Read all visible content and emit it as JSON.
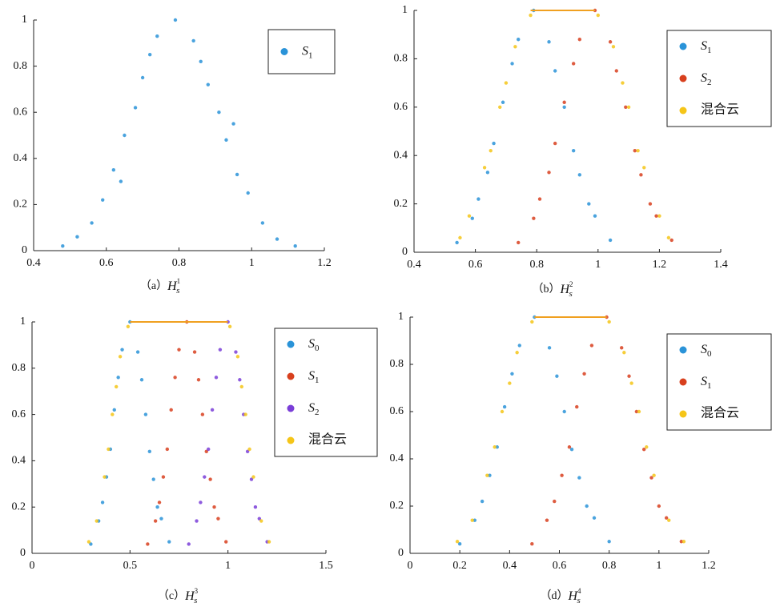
{
  "chart_data": [
    {
      "type": "scatter",
      "caption": {
        "label": "（a）",
        "symbol": "H",
        "sub": "s",
        "sup": "1"
      },
      "xlim": [
        0.4,
        1.2
      ],
      "xticks": [
        0.4,
        0.6,
        0.8,
        1,
        1.2
      ],
      "ylim": [
        0,
        1
      ],
      "yticks": [
        0,
        0.2,
        0.4,
        0.6,
        0.8,
        1
      ],
      "series": [
        {
          "name": "S1",
          "color": "#2a93d8",
          "x": [
            0.79,
            0.74,
            0.84,
            0.7,
            0.88,
            0.68,
            0.91,
            0.65,
            0.93,
            0.62,
            0.96,
            0.59,
            0.99,
            0.56,
            1.03,
            0.52,
            1.07,
            0.72,
            0.86,
            0.64,
            0.95,
            0.48,
            1.12
          ],
          "values": [
            1,
            0.93,
            0.91,
            0.75,
            0.72,
            0.62,
            0.6,
            0.5,
            0.48,
            0.35,
            0.33,
            0.22,
            0.25,
            0.12,
            0.12,
            0.06,
            0.05,
            0.85,
            0.82,
            0.3,
            0.55,
            0.02,
            0.02
          ]
        }
      ]
    },
    {
      "type": "scatter",
      "caption": {
        "label": "（b）",
        "symbol": "H",
        "sub": "s",
        "sup": "2"
      },
      "xlim": [
        0.4,
        1.4
      ],
      "xticks": [
        0.4,
        0.6,
        0.8,
        1,
        1.2,
        1.4
      ],
      "ylim": [
        0,
        1
      ],
      "yticks": [
        0,
        0.2,
        0.4,
        0.6,
        0.8,
        1
      ],
      "top_line": {
        "x": [
          0.78,
          0.99
        ],
        "y": [
          1,
          1
        ],
        "color": "#f0a020"
      },
      "series": [
        {
          "name": "S1",
          "color": "#2a93d8",
          "x": [
            0.79,
            0.74,
            0.84,
            0.69,
            0.89,
            0.64,
            0.94,
            0.59,
            0.99,
            0.54,
            1.04,
            0.72,
            0.86,
            0.66,
            0.92,
            0.61,
            0.97
          ],
          "values": [
            1,
            0.88,
            0.87,
            0.62,
            0.6,
            0.33,
            0.32,
            0.14,
            0.15,
            0.04,
            0.05,
            0.78,
            0.75,
            0.45,
            0.42,
            0.22,
            0.2
          ]
        },
        {
          "name": "S2",
          "color": "#d8401e",
          "x": [
            0.99,
            0.94,
            1.04,
            0.89,
            1.09,
            0.84,
            1.14,
            0.79,
            1.19,
            0.74,
            1.24,
            0.92,
            1.06,
            0.86,
            1.12,
            0.81,
            1.17
          ],
          "values": [
            1,
            0.88,
            0.87,
            0.62,
            0.6,
            0.33,
            0.32,
            0.14,
            0.15,
            0.04,
            0.05,
            0.78,
            0.75,
            0.45,
            0.42,
            0.22,
            0.2
          ]
        },
        {
          "name": "混合云",
          "color": "#f5c518",
          "x": [
            0.78,
            0.73,
            0.68,
            0.63,
            0.58,
            0.55,
            0.7,
            0.65,
            1.0,
            1.05,
            1.1,
            1.15,
            1.2,
            1.23,
            1.08,
            1.13
          ],
          "values": [
            0.98,
            0.85,
            0.6,
            0.35,
            0.15,
            0.06,
            0.7,
            0.42,
            0.98,
            0.85,
            0.6,
            0.35,
            0.15,
            0.06,
            0.7,
            0.42
          ]
        }
      ]
    },
    {
      "type": "scatter",
      "caption": {
        "label": "（c）",
        "symbol": "H",
        "sub": "s",
        "sup": "3"
      },
      "xlim": [
        0,
        1.5
      ],
      "xticks": [
        0,
        0.5,
        1,
        1.5
      ],
      "ylim": [
        0,
        1
      ],
      "yticks": [
        0,
        0.2,
        0.4,
        0.6,
        0.8,
        1
      ],
      "top_line": {
        "x": [
          0.5,
          1.0
        ],
        "y": [
          1,
          1
        ],
        "color": "#f0a020"
      },
      "series": [
        {
          "name": "S0",
          "color": "#2a93d8",
          "x": [
            0.5,
            0.46,
            0.54,
            0.42,
            0.58,
            0.38,
            0.62,
            0.34,
            0.66,
            0.3,
            0.7,
            0.44,
            0.56,
            0.4,
            0.6,
            0.36,
            0.64
          ],
          "values": [
            1,
            0.88,
            0.87,
            0.62,
            0.6,
            0.33,
            0.32,
            0.14,
            0.15,
            0.04,
            0.05,
            0.76,
            0.75,
            0.45,
            0.44,
            0.22,
            0.2
          ]
        },
        {
          "name": "S1",
          "color": "#d8401e",
          "x": [
            0.79,
            0.75,
            0.83,
            0.71,
            0.87,
            0.67,
            0.91,
            0.63,
            0.95,
            0.59,
            0.99,
            0.73,
            0.85,
            0.69,
            0.89,
            0.65,
            0.93
          ],
          "values": [
            1,
            0.88,
            0.87,
            0.62,
            0.6,
            0.33,
            0.32,
            0.14,
            0.15,
            0.04,
            0.05,
            0.76,
            0.75,
            0.45,
            0.44,
            0.22,
            0.2
          ]
        },
        {
          "name": "S2",
          "color": "#7a3ed8",
          "x": [
            1.0,
            0.96,
            1.04,
            0.92,
            1.08,
            0.88,
            1.12,
            0.84,
            1.16,
            0.8,
            1.2,
            0.94,
            1.06,
            0.9,
            1.1,
            0.86,
            1.14
          ],
          "values": [
            1,
            0.88,
            0.87,
            0.62,
            0.6,
            0.33,
            0.32,
            0.14,
            0.15,
            0.04,
            0.05,
            0.76,
            0.75,
            0.45,
            0.44,
            0.22,
            0.2
          ]
        },
        {
          "name": "混合云",
          "color": "#f5c518",
          "x": [
            0.49,
            0.45,
            0.41,
            0.37,
            0.33,
            0.29,
            0.43,
            0.39,
            1.01,
            1.05,
            1.09,
            1.13,
            1.17,
            1.21,
            1.07,
            1.11
          ],
          "values": [
            0.98,
            0.85,
            0.6,
            0.33,
            0.14,
            0.05,
            0.72,
            0.45,
            0.98,
            0.85,
            0.6,
            0.33,
            0.14,
            0.05,
            0.72,
            0.45
          ]
        }
      ]
    },
    {
      "type": "scatter",
      "caption": {
        "label": "（d）",
        "symbol": "H",
        "sub": "s",
        "sup": "4"
      },
      "xlim": [
        0,
        1.2
      ],
      "xticks": [
        0,
        0.2,
        0.4,
        0.6,
        0.8,
        1,
        1.2
      ],
      "ylim": [
        0,
        1
      ],
      "yticks": [
        0,
        0.2,
        0.4,
        0.6,
        0.8,
        1
      ],
      "top_line": {
        "x": [
          0.5,
          0.79
        ],
        "y": [
          1,
          1
        ],
        "color": "#f0a020"
      },
      "series": [
        {
          "name": "S0",
          "color": "#2a93d8",
          "x": [
            0.5,
            0.44,
            0.56,
            0.38,
            0.62,
            0.32,
            0.68,
            0.26,
            0.74,
            0.2,
            0.8,
            0.41,
            0.59,
            0.35,
            0.65,
            0.29,
            0.71
          ],
          "values": [
            1,
            0.88,
            0.87,
            0.62,
            0.6,
            0.33,
            0.32,
            0.14,
            0.15,
            0.04,
            0.05,
            0.76,
            0.75,
            0.45,
            0.44,
            0.22,
            0.2
          ]
        },
        {
          "name": "S1",
          "color": "#d8401e",
          "x": [
            0.79,
            0.73,
            0.85,
            0.67,
            0.91,
            0.61,
            0.97,
            0.55,
            1.03,
            0.49,
            1.09,
            0.7,
            0.88,
            0.64,
            0.94,
            0.58,
            1.0
          ],
          "values": [
            1,
            0.88,
            0.87,
            0.62,
            0.6,
            0.33,
            0.32,
            0.14,
            0.15,
            0.04,
            0.05,
            0.76,
            0.75,
            0.45,
            0.44,
            0.22,
            0.2
          ]
        },
        {
          "name": "混合云",
          "color": "#f5c518",
          "x": [
            0.49,
            0.43,
            0.37,
            0.31,
            0.25,
            0.19,
            0.4,
            0.34,
            0.8,
            0.86,
            0.92,
            0.98,
            1.04,
            1.1,
            0.89,
            0.95
          ],
          "values": [
            0.98,
            0.85,
            0.6,
            0.33,
            0.14,
            0.05,
            0.72,
            0.45,
            0.98,
            0.85,
            0.6,
            0.33,
            0.14,
            0.05,
            0.72,
            0.45
          ]
        }
      ]
    }
  ]
}
